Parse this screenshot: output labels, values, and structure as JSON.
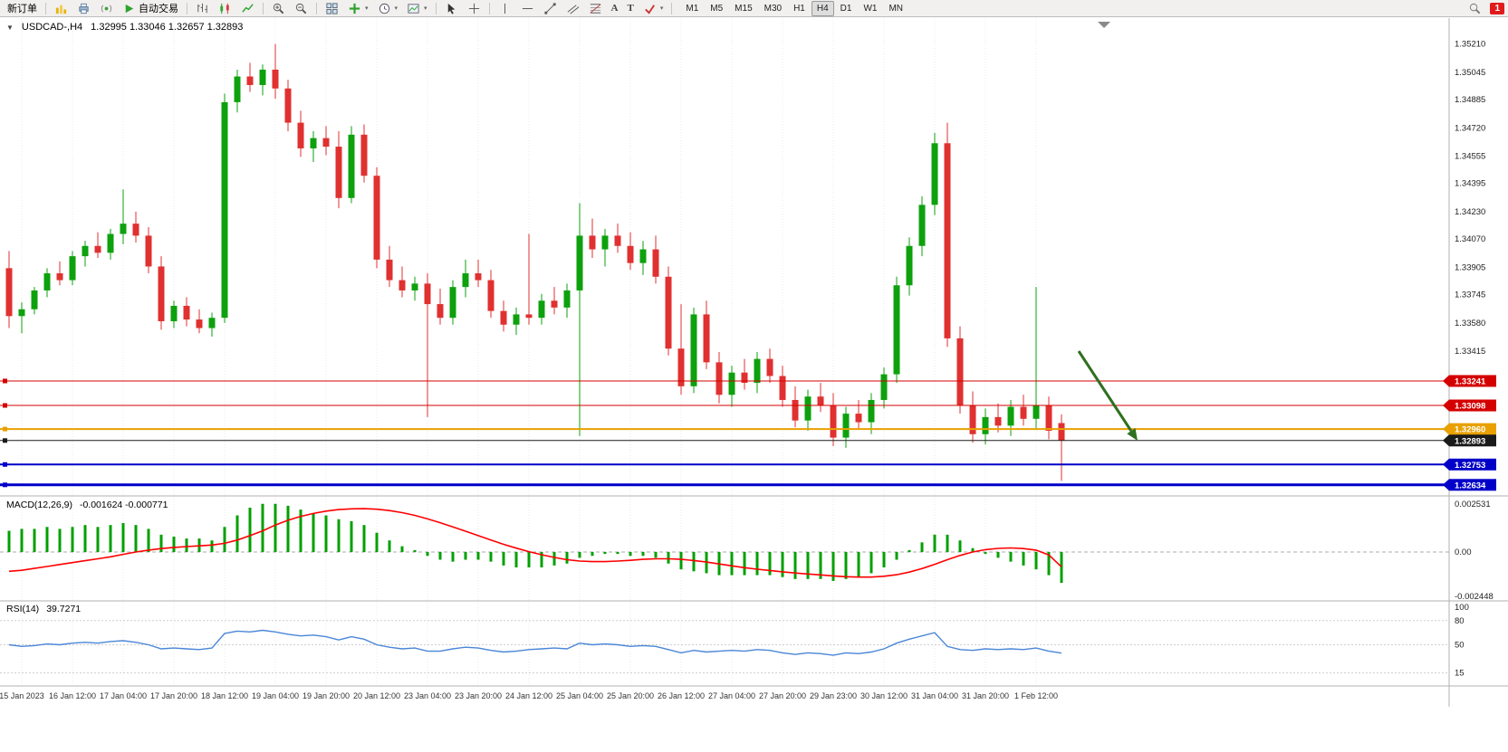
{
  "window": {
    "title_symbol": "USDCAD-,H4",
    "title_ohlc": "1.32995 1.33046 1.32657 1.32893"
  },
  "toolbar": {
    "new_order": "新订单",
    "autotrade": "自动交易",
    "timeframes": [
      "M1",
      "M5",
      "M15",
      "M30",
      "H1",
      "H4",
      "D1",
      "W1",
      "MN"
    ],
    "active_timeframe": "H4",
    "notification_count": "1",
    "icon_names": [
      "charts-icon",
      "print-icon",
      "signals-icon",
      "autotrade-icon",
      "bars-chart-icon",
      "candles-chart-icon",
      "line-chart-icon",
      "zoom-in-icon",
      "zoom-out-icon",
      "tile-windows-icon",
      "indicators-icon",
      "periods-icon",
      "templates-icon",
      "cursor-icon",
      "crosshair-icon",
      "vertical-line-icon",
      "horizontal-line-icon",
      "trendline-icon",
      "channel-icon",
      "fibonacci-icon",
      "text-icon",
      "label-icon",
      "arrows-icon",
      "search-icon"
    ]
  },
  "chart_data": {
    "type": "candlestick",
    "symbol": "USDCAD",
    "period": "H4",
    "current_bar": {
      "open": 1.32995,
      "high": 1.33046,
      "low": 1.32657,
      "close": 1.32893
    },
    "colors": {
      "bull": "#0DA10D",
      "bear": "#E03030",
      "macd_hist": "#00A000",
      "macd_signal": "#FF0000",
      "rsi": "#4A86D8",
      "hline_red": "#D40000",
      "hline_orange": "#E8A100",
      "hline_blue": "#0000C8",
      "arrow": "#2F7020"
    },
    "price_axis_ticks": [
      "1.35210",
      "1.35045",
      "1.34885",
      "1.34720",
      "1.34555",
      "1.34395",
      "1.34230",
      "1.34070",
      "1.33905",
      "1.33745",
      "1.33580",
      "1.33415"
    ],
    "time_axis_labels": [
      "15 Jan 2023",
      "16 Jan 12:00",
      "17 Jan 04:00",
      "17 Jan 20:00",
      "18 Jan 12:00",
      "19 Jan 04:00",
      "19 Jan 20:00",
      "20 Jan 12:00",
      "23 Jan 04:00",
      "23 Jan 20:00",
      "24 Jan 12:00",
      "25 Jan 04:00",
      "25 Jan 20:00",
      "26 Jan 12:00",
      "27 Jan 04:00",
      "27 Jan 20:00",
      "29 Jan 23:00",
      "30 Jan 12:00",
      "31 Jan 04:00",
      "31 Jan 20:00",
      "1 Feb 12:00"
    ],
    "hlines": [
      {
        "price": 1.33241,
        "label": "1.33241",
        "color": "#D40000",
        "width": 1
      },
      {
        "price": 1.33098,
        "label": "1.33098",
        "color": "#D40000",
        "width": 1
      },
      {
        "price": 1.3296,
        "label": "1.32960",
        "color": "#E8A100",
        "width": 2
      },
      {
        "price": 1.32893,
        "label": "1.32893",
        "color": "#1A1A1A",
        "width": 1
      },
      {
        "price": 1.32753,
        "label": "1.32753",
        "color": "#0000C8",
        "width": 2
      },
      {
        "price": 1.32634,
        "label": "1.32634",
        "color": "#0000C8",
        "width": 3
      }
    ],
    "candles": [
      [
        1.339,
        1.34,
        1.3355,
        1.3362
      ],
      [
        1.3362,
        1.337,
        1.3352,
        1.3366
      ],
      [
        1.3366,
        1.3379,
        1.3363,
        1.3377
      ],
      [
        1.3377,
        1.339,
        1.3373,
        1.3387
      ],
      [
        1.3387,
        1.3394,
        1.338,
        1.3383
      ],
      [
        1.3383,
        1.34,
        1.338,
        1.3397
      ],
      [
        1.3397,
        1.3406,
        1.3391,
        1.3403
      ],
      [
        1.3403,
        1.3411,
        1.3396,
        1.3399
      ],
      [
        1.3399,
        1.3413,
        1.3395,
        1.341
      ],
      [
        1.341,
        1.3436,
        1.3404,
        1.3416
      ],
      [
        1.3416,
        1.3423,
        1.3405,
        1.3409
      ],
      [
        1.3409,
        1.3414,
        1.3387,
        1.3391
      ],
      [
        1.3391,
        1.3397,
        1.3354,
        1.3359
      ],
      [
        1.3359,
        1.3371,
        1.3355,
        1.3368
      ],
      [
        1.3368,
        1.3373,
        1.3356,
        1.336
      ],
      [
        1.336,
        1.3366,
        1.3352,
        1.3355
      ],
      [
        1.3355,
        1.3364,
        1.335,
        1.3361
      ],
      [
        1.3361,
        1.3492,
        1.3358,
        1.3487
      ],
      [
        1.3487,
        1.3506,
        1.3481,
        1.3502
      ],
      [
        1.3502,
        1.351,
        1.3493,
        1.3497
      ],
      [
        1.3497,
        1.3509,
        1.3491,
        1.3506
      ],
      [
        1.3506,
        1.3521,
        1.3489,
        1.3495
      ],
      [
        1.3495,
        1.35,
        1.347,
        1.3475
      ],
      [
        1.3475,
        1.3482,
        1.3455,
        1.346
      ],
      [
        1.346,
        1.347,
        1.3452,
        1.3466
      ],
      [
        1.3466,
        1.3473,
        1.3456,
        1.3461
      ],
      [
        1.3461,
        1.347,
        1.3425,
        1.3431
      ],
      [
        1.3431,
        1.3473,
        1.3428,
        1.3468
      ],
      [
        1.3468,
        1.3474,
        1.344,
        1.3444
      ],
      [
        1.3444,
        1.3449,
        1.339,
        1.3395
      ],
      [
        1.3395,
        1.3403,
        1.3379,
        1.3383
      ],
      [
        1.3383,
        1.3391,
        1.3373,
        1.3377
      ],
      [
        1.3377,
        1.3385,
        1.3371,
        1.3381
      ],
      [
        1.3381,
        1.3387,
        1.3303,
        1.3369
      ],
      [
        1.3369,
        1.3378,
        1.3357,
        1.3361
      ],
      [
        1.3361,
        1.3383,
        1.3357,
        1.3379
      ],
      [
        1.3379,
        1.3395,
        1.3373,
        1.3387
      ],
      [
        1.3387,
        1.3395,
        1.3379,
        1.3383
      ],
      [
        1.3383,
        1.3389,
        1.3361,
        1.3365
      ],
      [
        1.3365,
        1.3371,
        1.3353,
        1.3357
      ],
      [
        1.3357,
        1.3367,
        1.3351,
        1.3363
      ],
      [
        1.3363,
        1.341,
        1.3357,
        1.3361
      ],
      [
        1.3361,
        1.3375,
        1.3357,
        1.3371
      ],
      [
        1.3371,
        1.3379,
        1.3363,
        1.3367
      ],
      [
        1.3367,
        1.3381,
        1.3361,
        1.3377
      ],
      [
        1.3377,
        1.3428,
        1.3292,
        1.3409
      ],
      [
        1.3409,
        1.3419,
        1.3396,
        1.3401
      ],
      [
        1.3401,
        1.3413,
        1.3391,
        1.3409
      ],
      [
        1.3409,
        1.3416,
        1.3399,
        1.3403
      ],
      [
        1.3403,
        1.3411,
        1.3389,
        1.3393
      ],
      [
        1.3393,
        1.3406,
        1.3386,
        1.3401
      ],
      [
        1.3401,
        1.3409,
        1.3381,
        1.3385
      ],
      [
        1.3385,
        1.3391,
        1.3339,
        1.3343
      ],
      [
        1.3343,
        1.3369,
        1.3316,
        1.3321
      ],
      [
        1.3321,
        1.3367,
        1.3317,
        1.3363
      ],
      [
        1.3363,
        1.3371,
        1.3331,
        1.3335
      ],
      [
        1.3335,
        1.3341,
        1.3311,
        1.3316
      ],
      [
        1.3316,
        1.3333,
        1.3309,
        1.3329
      ],
      [
        1.3329,
        1.3337,
        1.3319,
        1.3323
      ],
      [
        1.3323,
        1.3341,
        1.3317,
        1.3337
      ],
      [
        1.3337,
        1.3343,
        1.3323,
        1.3327
      ],
      [
        1.3327,
        1.3333,
        1.3309,
        1.3313
      ],
      [
        1.3313,
        1.3321,
        1.3297,
        1.3301
      ],
      [
        1.3301,
        1.3319,
        1.3295,
        1.3315
      ],
      [
        1.3315,
        1.3323,
        1.3306,
        1.331
      ],
      [
        1.331,
        1.3317,
        1.3286,
        1.3291
      ],
      [
        1.3291,
        1.3309,
        1.3285,
        1.3305
      ],
      [
        1.3305,
        1.3313,
        1.3296,
        1.33
      ],
      [
        1.33,
        1.3317,
        1.3293,
        1.3313
      ],
      [
        1.3313,
        1.3332,
        1.3308,
        1.3328
      ],
      [
        1.3328,
        1.3385,
        1.3323,
        1.338
      ],
      [
        1.338,
        1.3408,
        1.3374,
        1.3403
      ],
      [
        1.3403,
        1.3432,
        1.3397,
        1.3427
      ],
      [
        1.3427,
        1.3469,
        1.3421,
        1.3463
      ],
      [
        1.3463,
        1.3475,
        1.3344,
        1.3349
      ],
      [
        1.3349,
        1.3356,
        1.3305,
        1.331
      ],
      [
        1.331,
        1.3318,
        1.3288,
        1.3293
      ],
      [
        1.3293,
        1.3308,
        1.3287,
        1.3303
      ],
      [
        1.3303,
        1.3311,
        1.3294,
        1.3298
      ],
      [
        1.3298,
        1.3313,
        1.3292,
        1.3309
      ],
      [
        1.3309,
        1.3316,
        1.3298,
        1.3302
      ],
      [
        1.3302,
        1.3379,
        1.3296,
        1.331
      ],
      [
        1.331,
        1.3315,
        1.329,
        1.3295
      ],
      [
        1.32995,
        1.33046,
        1.32657,
        1.32893
      ]
    ],
    "macd": {
      "label": "MACD(12,26,9)",
      "values_text": "-0.001624 -0.000771",
      "axis": [
        "0.002531",
        "0.00",
        "-0.002448"
      ],
      "histogram": [
        0.0011,
        0.0012,
        0.0012,
        0.0013,
        0.0012,
        0.0013,
        0.0014,
        0.0013,
        0.0014,
        0.0015,
        0.0014,
        0.0012,
        0.0009,
        0.0008,
        0.0007,
        0.0007,
        0.0006,
        0.0013,
        0.0019,
        0.0023,
        0.0025,
        0.0025,
        0.0024,
        0.0022,
        0.002,
        0.0019,
        0.0017,
        0.0016,
        0.0014,
        0.001,
        0.0006,
        0.0003,
        0.0001,
        -0.0002,
        -0.0004,
        -0.0005,
        -0.0004,
        -0.0004,
        -0.0005,
        -0.0007,
        -0.0008,
        -0.0008,
        -0.0008,
        -0.0007,
        -0.0006,
        -0.0003,
        -0.0002,
        -0.0001,
        -0.0001,
        -0.0002,
        -0.0002,
        -0.0003,
        -0.0006,
        -0.0009,
        -0.001,
        -0.0011,
        -0.0012,
        -0.0012,
        -0.0012,
        -0.0012,
        -0.0012,
        -0.0013,
        -0.0014,
        -0.0014,
        -0.0014,
        -0.0015,
        -0.0014,
        -0.0013,
        -0.0011,
        -0.0008,
        -0.0004,
        0.0001,
        0.0005,
        0.0009,
        0.0009,
        0.0006,
        0.0002,
        -0.0001,
        -0.0003,
        -0.0005,
        -0.0007,
        -0.0009,
        -0.0012,
        -0.0016
      ],
      "signal": [
        -0.001,
        -0.00095,
        -0.00085,
        -0.00075,
        -0.00065,
        -0.00055,
        -0.00045,
        -0.00035,
        -0.00025,
        -0.00012,
        0.0,
        0.0001,
        0.00018,
        0.00024,
        0.00028,
        0.00032,
        0.00036,
        0.00045,
        0.00062,
        0.00085,
        0.0011,
        0.0014,
        0.00165,
        0.00185,
        0.002,
        0.00212,
        0.0022,
        0.00224,
        0.00225,
        0.00222,
        0.00215,
        0.00204,
        0.0019,
        0.00172,
        0.00152,
        0.0013,
        0.00108,
        0.00085,
        0.00062,
        0.0004,
        0.0002,
        2e-05,
        -0.00014,
        -0.00028,
        -0.0004,
        -0.00047,
        -0.0005,
        -0.0005,
        -0.00047,
        -0.00043,
        -0.00038,
        -0.00035,
        -0.00035,
        -0.00038,
        -0.00044,
        -0.00052,
        -0.00062,
        -0.00072,
        -0.00081,
        -0.00089,
        -0.00096,
        -0.00103,
        -0.00109,
        -0.00114,
        -0.00119,
        -0.00124,
        -0.00128,
        -0.0013,
        -0.0013,
        -0.00126,
        -0.00118,
        -0.00104,
        -0.00086,
        -0.00064,
        -0.0004,
        -0.00018,
        0.0,
        0.00012,
        0.00019,
        0.00021,
        0.00018,
        0.0001,
        -0.00015,
        -0.00077
      ]
    },
    "rsi": {
      "label": "RSI(14)",
      "value_text": "39.7271",
      "axis": [
        "100",
        "80",
        "50",
        "15"
      ],
      "values": [
        50,
        48,
        49,
        51,
        50,
        52,
        53,
        52,
        54,
        55,
        53,
        50,
        45,
        46,
        45,
        44,
        46,
        64,
        67,
        66,
        68,
        66,
        63,
        61,
        62,
        60,
        56,
        60,
        57,
        50,
        47,
        45,
        46,
        42,
        42,
        45,
        47,
        46,
        43,
        41,
        42,
        44,
        45,
        46,
        45,
        52,
        50,
        51,
        50,
        48,
        49,
        48,
        44,
        40,
        43,
        41,
        42,
        43,
        42,
        44,
        43,
        40,
        38,
        40,
        39,
        37,
        40,
        39,
        41,
        45,
        52,
        57,
        61,
        65,
        48,
        44,
        43,
        45,
        44,
        45,
        44,
        46,
        42,
        39.7
      ]
    },
    "annotation_arrow": {
      "from": [
        1191,
        388
      ],
      "to": [
        1256,
        487
      ],
      "color": "#2F7020"
    }
  }
}
